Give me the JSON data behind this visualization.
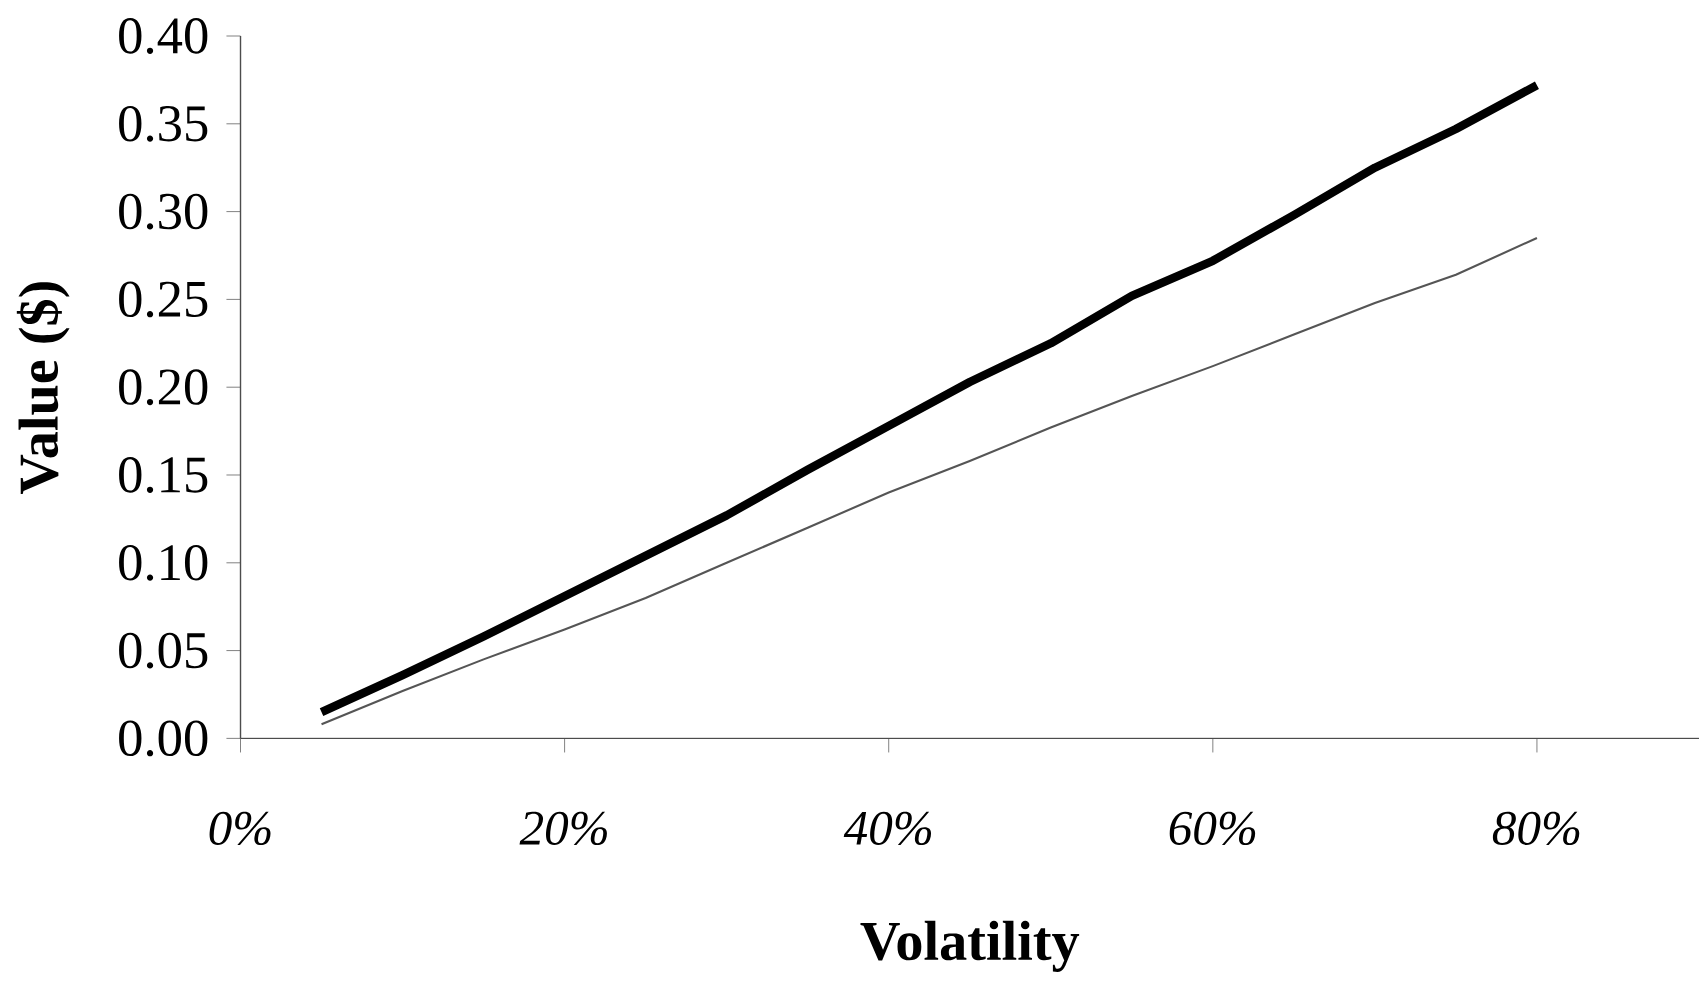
{
  "chart_data": {
    "type": "line",
    "xlabel": "Volatility",
    "ylabel": "Value    ($)",
    "x": [
      5,
      10,
      15,
      20,
      25,
      30,
      35,
      40,
      45,
      50,
      55,
      60,
      65,
      70,
      75,
      80
    ],
    "series": [
      {
        "color": "#000000",
        "values": [
          0.015,
          0.036,
          0.058,
          0.081,
          0.104,
          0.127,
          0.153,
          0.178,
          0.203,
          0.225,
          0.252,
          0.272,
          0.298,
          0.325,
          0.347,
          0.372
        ]
      },
      {
        "color": "#555555",
        "values": [
          0.008,
          0.027,
          0.045,
          0.062,
          0.08,
          0.1,
          0.12,
          0.14,
          0.158,
          0.177,
          0.195,
          0.212,
          0.23,
          0.248,
          0.264,
          0.285
        ]
      }
    ],
    "xlim": [
      0,
      90
    ],
    "xticks": [
      {
        "value": 0,
        "label": "0%"
      },
      {
        "value": 20,
        "label": "20%"
      },
      {
        "value": 40,
        "label": "40%"
      },
      {
        "value": 60,
        "label": "60%"
      },
      {
        "value": 80,
        "label": "80%"
      }
    ],
    "ylim": [
      0,
      0.4
    ],
    "yticks": [
      {
        "value": 0,
        "label": "0.00"
      },
      {
        "value": 0.05,
        "label": "0.05"
      },
      {
        "value": 0.1,
        "label": "0.10"
      },
      {
        "value": 0.15,
        "label": "0.15"
      },
      {
        "value": 0.2,
        "label": "0.20"
      },
      {
        "value": 0.25,
        "label": "0.25"
      },
      {
        "value": 0.3,
        "label": "0.30"
      },
      {
        "value": 0.35,
        "label": "0.35"
      },
      {
        "value": 0.4,
        "label": "0.40"
      }
    ],
    "grid": false,
    "marker": "none",
    "line_style": "solid"
  }
}
